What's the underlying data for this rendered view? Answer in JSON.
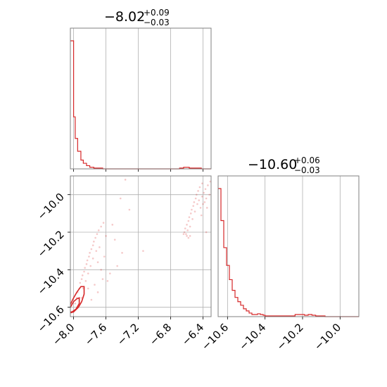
{
  "colors": {
    "series": "#d62728",
    "grid": "#b0b0b0",
    "frame": "#808080"
  },
  "chart_data": [
    {
      "type": "histogram",
      "panel": "marginal-param-1",
      "title": "−8.02",
      "title_upper": "+0.09",
      "title_lower": "−0.03",
      "xlim": [
        -8.04,
        -6.3
      ],
      "xticks": [
        -8.0,
        -7.6,
        -7.2,
        -6.8,
        -6.4
      ],
      "grid": true,
      "bins": [
        {
          "x0": -8.04,
          "x1": -8.0,
          "count": 160
        },
        {
          "x0": -8.0,
          "x1": -7.98,
          "count": 65
        },
        {
          "x0": -7.98,
          "x1": -7.95,
          "count": 38
        },
        {
          "x0": -7.95,
          "x1": -7.91,
          "count": 22
        },
        {
          "x0": -7.91,
          "x1": -7.88,
          "count": 11
        },
        {
          "x0": -7.88,
          "x1": -7.84,
          "count": 7
        },
        {
          "x0": -7.84,
          "x1": -7.8,
          "count": 4
        },
        {
          "x0": -7.8,
          "x1": -7.75,
          "count": 2
        },
        {
          "x0": -7.75,
          "x1": -7.7,
          "count": 1
        },
        {
          "x0": -7.7,
          "x1": -7.64,
          "count": 1
        },
        {
          "x0": -7.64,
          "x1": -6.69,
          "count": 0
        },
        {
          "x0": -6.69,
          "x1": -6.64,
          "count": 1
        },
        {
          "x0": -6.64,
          "x1": -6.57,
          "count": 2
        },
        {
          "x0": -6.57,
          "x1": -6.5,
          "count": 1
        },
        {
          "x0": -6.5,
          "x1": -6.42,
          "count": 1
        },
        {
          "x0": -6.42,
          "x1": -6.3,
          "count": 0
        }
      ]
    },
    {
      "type": "histogram",
      "panel": "marginal-param-2",
      "title": "−10.60",
      "title_upper": "+0.06",
      "title_lower": "−0.03",
      "xlim": [
        -10.65,
        -9.9
      ],
      "xticks": [
        -10.6,
        -10.4,
        -10.2,
        -10.0
      ],
      "grid": true,
      "bins": [
        {
          "x0": -10.65,
          "x1": -10.635,
          "count": 180
        },
        {
          "x0": -10.635,
          "x1": -10.62,
          "count": 135
        },
        {
          "x0": -10.62,
          "x1": -10.605,
          "count": 97
        },
        {
          "x0": -10.605,
          "x1": -10.59,
          "count": 72
        },
        {
          "x0": -10.59,
          "x1": -10.575,
          "count": 52
        },
        {
          "x0": -10.575,
          "x1": -10.56,
          "count": 37
        },
        {
          "x0": -10.56,
          "x1": -10.545,
          "count": 27
        },
        {
          "x0": -10.545,
          "x1": -10.53,
          "count": 21
        },
        {
          "x0": -10.53,
          "x1": -10.515,
          "count": 16
        },
        {
          "x0": -10.515,
          "x1": -10.5,
          "count": 11
        },
        {
          "x0": -10.5,
          "x1": -10.485,
          "count": 8
        },
        {
          "x0": -10.485,
          "x1": -10.47,
          "count": 5
        },
        {
          "x0": -10.47,
          "x1": -10.455,
          "count": 3
        },
        {
          "x0": -10.455,
          "x1": -10.44,
          "count": 3
        },
        {
          "x0": -10.44,
          "x1": -10.425,
          "count": 4
        },
        {
          "x0": -10.425,
          "x1": -10.41,
          "count": 3
        },
        {
          "x0": -10.41,
          "x1": -10.4,
          "count": 2
        },
        {
          "x0": -10.4,
          "x1": -10.24,
          "count": 1
        },
        {
          "x0": -10.24,
          "x1": -10.22,
          "count": 3
        },
        {
          "x0": -10.22,
          "x1": -10.19,
          "count": 3
        },
        {
          "x0": -10.19,
          "x1": -10.17,
          "count": 2
        },
        {
          "x0": -10.17,
          "x1": -10.15,
          "count": 3
        },
        {
          "x0": -10.15,
          "x1": -10.13,
          "count": 2
        },
        {
          "x0": -10.13,
          "x1": -10.08,
          "count": 1
        },
        {
          "x0": -10.08,
          "x1": -9.9,
          "count": 0
        }
      ]
    },
    {
      "type": "scatter",
      "panel": "joint-param-1-vs-param-2",
      "xlim": [
        -8.04,
        -6.3
      ],
      "ylim": [
        -10.65,
        -9.9
      ],
      "xticks": [
        -8.0,
        -7.6,
        -7.2,
        -6.8,
        -6.4
      ],
      "yticks": [
        -10.6,
        -10.4,
        -10.2,
        -10.0
      ],
      "grid": true,
      "points": [
        [
          -7.98,
          -10.58
        ],
        [
          -7.96,
          -10.55
        ],
        [
          -7.95,
          -10.52
        ],
        [
          -7.93,
          -10.5
        ],
        [
          -7.92,
          -10.47
        ],
        [
          -7.9,
          -10.45
        ],
        [
          -7.89,
          -10.43
        ],
        [
          -7.87,
          -10.41
        ],
        [
          -7.86,
          -10.39
        ],
        [
          -7.84,
          -10.37
        ],
        [
          -7.83,
          -10.35
        ],
        [
          -7.81,
          -10.33
        ],
        [
          -7.8,
          -10.31
        ],
        [
          -7.78,
          -10.29
        ],
        [
          -7.76,
          -10.27
        ],
        [
          -7.75,
          -10.25
        ],
        [
          -7.73,
          -10.23
        ],
        [
          -7.71,
          -10.21
        ],
        [
          -7.69,
          -10.19
        ],
        [
          -7.66,
          -10.17
        ],
        [
          -7.63,
          -10.15
        ],
        [
          -7.9,
          -10.55
        ],
        [
          -7.88,
          -10.5
        ],
        [
          -7.85,
          -10.46
        ],
        [
          -7.82,
          -10.42
        ],
        [
          -7.79,
          -10.38
        ],
        [
          -7.76,
          -10.34
        ],
        [
          -7.72,
          -10.3
        ],
        [
          -7.7,
          -10.36
        ],
        [
          -7.68,
          -10.28
        ],
        [
          -7.66,
          -10.4
        ],
        [
          -7.62,
          -10.33
        ],
        [
          -7.6,
          -10.22
        ],
        [
          -7.58,
          -10.46
        ],
        [
          -7.55,
          -10.42
        ],
        [
          -7.52,
          -10.16
        ],
        [
          -7.49,
          -10.24
        ],
        [
          -7.46,
          -10.38
        ],
        [
          -7.42,
          -10.02
        ],
        [
          -7.4,
          -10.31
        ],
        [
          -7.36,
          -9.92
        ],
        [
          -7.31,
          -10.08
        ],
        [
          -7.14,
          -10.3
        ],
        [
          -7.74,
          -10.48
        ],
        [
          -7.7,
          -10.52
        ],
        [
          -7.78,
          -10.56
        ],
        [
          -7.82,
          -10.5
        ],
        [
          -7.64,
          -10.45
        ],
        [
          -6.63,
          -10.2
        ],
        [
          -6.62,
          -10.18
        ],
        [
          -6.61,
          -10.21
        ],
        [
          -6.6,
          -10.16
        ],
        [
          -6.59,
          -10.19
        ],
        [
          -6.58,
          -10.14
        ],
        [
          -6.57,
          -10.12
        ],
        [
          -6.56,
          -10.17
        ],
        [
          -6.55,
          -10.1
        ],
        [
          -6.54,
          -10.08
        ],
        [
          -6.53,
          -10.13
        ],
        [
          -6.52,
          -10.06
        ],
        [
          -6.51,
          -10.04
        ],
        [
          -6.5,
          -10.09
        ],
        [
          -6.49,
          -10.02
        ],
        [
          -6.48,
          -10.0
        ],
        [
          -6.47,
          -10.05
        ],
        [
          -6.46,
          -9.98
        ],
        [
          -6.45,
          -10.03
        ],
        [
          -6.44,
          -9.96
        ],
        [
          -6.43,
          -10.07
        ],
        [
          -6.42,
          -10.11
        ],
        [
          -6.41,
          -10.01
        ],
        [
          -6.4,
          -10.05
        ],
        [
          -6.39,
          -9.99
        ],
        [
          -6.38,
          -10.04
        ],
        [
          -6.37,
          -9.97
        ],
        [
          -6.36,
          -10.02
        ],
        [
          -6.35,
          -10.07
        ],
        [
          -6.34,
          -9.95
        ],
        [
          -6.32,
          -10.0
        ],
        [
          -6.31,
          -9.93
        ],
        [
          -6.36,
          -10.2
        ],
        [
          -6.41,
          -9.94
        ],
        [
          -6.6,
          -10.22
        ],
        [
          -6.58,
          -10.23
        ],
        [
          -6.64,
          -10.21
        ],
        [
          -6.56,
          -10.22
        ]
      ],
      "contours": [
        [
          [
            -8.04,
            -10.585
          ],
          [
            -8.0,
            -10.55
          ],
          [
            -7.96,
            -10.52
          ],
          [
            -7.91,
            -10.49
          ],
          [
            -7.87,
            -10.49
          ],
          [
            -7.87,
            -10.53
          ],
          [
            -7.9,
            -10.57
          ],
          [
            -7.94,
            -10.6
          ],
          [
            -8.0,
            -10.625
          ],
          [
            -8.04,
            -10.63
          ]
        ],
        [
          [
            -8.04,
            -10.6
          ],
          [
            -8.0,
            -10.57
          ],
          [
            -7.96,
            -10.555
          ],
          [
            -7.93,
            -10.55
          ],
          [
            -7.93,
            -10.58
          ],
          [
            -7.97,
            -10.61
          ],
          [
            -8.02,
            -10.625
          ],
          [
            -8.04,
            -10.625
          ]
        ]
      ]
    }
  ]
}
